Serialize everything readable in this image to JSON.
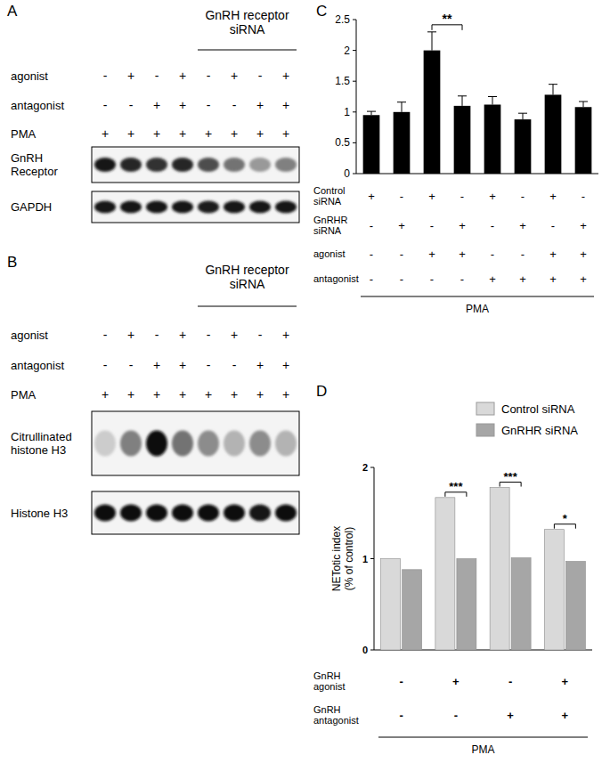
{
  "blots": [
    {
      "title": "A",
      "header": "GnRH receptor\nsiRNA",
      "sirna": [
        false,
        false,
        false,
        false,
        true,
        true,
        true,
        true
      ],
      "conditions": [
        {
          "label": "agonist",
          "signs": [
            "-",
            "+",
            "-",
            "+",
            "-",
            "+",
            "-",
            "+"
          ]
        },
        {
          "label": "antagonist",
          "signs": [
            "-",
            "-",
            "+",
            "+",
            "-",
            "-",
            "+",
            "+"
          ]
        },
        {
          "label": "PMA",
          "signs": [
            "+",
            "+",
            "+",
            "+",
            "+",
            "+",
            "+",
            "+"
          ]
        }
      ],
      "rows": [
        {
          "label": "GnRH\nReceptor",
          "intensity": [
            0.9,
            0.85,
            0.8,
            0.85,
            0.7,
            0.55,
            0.4,
            0.5
          ]
        },
        {
          "label": "GAPDH",
          "intensity": [
            0.9,
            0.9,
            0.9,
            0.9,
            0.88,
            0.9,
            0.9,
            0.9
          ]
        }
      ]
    },
    {
      "title": "B",
      "header": "GnRH receptor\nsiRNA",
      "sirna": [
        false,
        false,
        false,
        false,
        true,
        true,
        true,
        true
      ],
      "conditions": [
        {
          "label": "agonist",
          "signs": [
            "-",
            "+",
            "-",
            "+",
            "-",
            "+",
            "-",
            "+"
          ]
        },
        {
          "label": "antagonist",
          "signs": [
            "-",
            "-",
            "+",
            "+",
            "-",
            "-",
            "+",
            "+"
          ]
        },
        {
          "label": "PMA",
          "signs": [
            "+",
            "+",
            "+",
            "+",
            "+",
            "+",
            "+",
            "+"
          ]
        }
      ],
      "rows": [
        {
          "label": "Citrullinated\nhistone H3",
          "intensity": [
            0.2,
            0.5,
            0.95,
            0.55,
            0.45,
            0.3,
            0.45,
            0.3
          ]
        },
        {
          "label": "Histone H3",
          "intensity": [
            0.95,
            0.95,
            0.95,
            0.95,
            0.95,
            0.95,
            0.92,
            0.95
          ]
        }
      ]
    }
  ],
  "chart_data": [
    {
      "type": "bar",
      "title": "C",
      "categories": [
        null,
        null,
        null,
        null,
        null,
        null,
        null,
        null
      ],
      "values": [
        0.95,
        1.0,
        2.0,
        1.1,
        1.12,
        0.88,
        1.28,
        1.08
      ],
      "errors": [
        0.06,
        0.16,
        0.3,
        0.16,
        0.13,
        0.1,
        0.17,
        0.09
      ],
      "color": "#000000",
      "ylim": [
        0,
        2.5
      ],
      "yticks": [
        0,
        0.5,
        1,
        1.5,
        2,
        2.5
      ],
      "annotations": [
        {
          "label": "**",
          "between": [
            2,
            3
          ]
        }
      ],
      "conditions": [
        {
          "label": "Control\nsiRNA",
          "signs": [
            "+",
            "-",
            "+",
            "-",
            "+",
            "-",
            "+",
            "-"
          ]
        },
        {
          "label": "GnRHR\nsiRNA",
          "signs": [
            "-",
            "+",
            "-",
            "+",
            "-",
            "+",
            "-",
            "+"
          ]
        },
        {
          "label": "agonist",
          "signs": [
            "-",
            "-",
            "+",
            "+",
            "-",
            "-",
            "+",
            "+"
          ]
        },
        {
          "label": "antagonist",
          "signs": [
            "-",
            "-",
            "-",
            "-",
            "+",
            "+",
            "+",
            "+"
          ]
        }
      ],
      "footer": "PMA"
    },
    {
      "type": "bar",
      "title": "D",
      "categories": [
        null,
        null,
        null,
        null
      ],
      "series": [
        {
          "name": "Control siRNA",
          "color": "#d9d9d9",
          "values": [
            1.0,
            1.67,
            1.78,
            1.32
          ]
        },
        {
          "name": "GnRHR siRNA",
          "color": "#a6a6a6",
          "values": [
            0.88,
            1.0,
            1.01,
            0.97
          ]
        }
      ],
      "ylim": [
        0,
        2
      ],
      "yticks": [
        0,
        1,
        2
      ],
      "ylabel": "NETotic index\n(% of control)",
      "legend": "top-right",
      "annotations": [
        {
          "label": "***",
          "category": 1
        },
        {
          "label": "***",
          "category": 2
        },
        {
          "label": "*",
          "category": 3
        }
      ],
      "conditions": [
        {
          "label": "GnRH\nagonist",
          "signs": [
            "-",
            "+",
            "-",
            "+"
          ]
        },
        {
          "label": "GnRH\nantagonist",
          "signs": [
            "-",
            "-",
            "+",
            "+"
          ]
        }
      ],
      "footer": "PMA"
    }
  ]
}
